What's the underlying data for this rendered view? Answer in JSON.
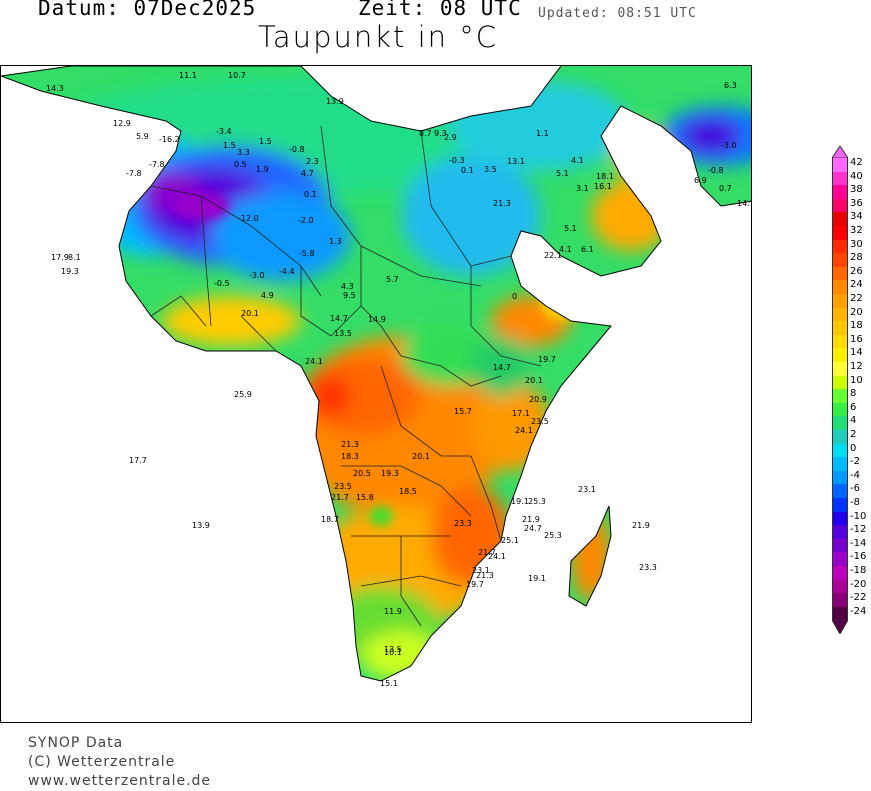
{
  "header": {
    "datum": "Datum: 07Dec2025",
    "zeit": "Zeit: 08  UTC",
    "updated": "Updated: 08:51 UTC",
    "title": "Taupunkt in °C"
  },
  "footer": {
    "line1": "SYNOP Data",
    "line2": "(C) Wetterzentrale",
    "line3": "www.wetterzentrale.de"
  },
  "legend": {
    "levels": [
      {
        "value": "42",
        "color": "#ff66ff"
      },
      {
        "value": "40",
        "color": "#ff33cc"
      },
      {
        "value": "38",
        "color": "#ff0099"
      },
      {
        "value": "36",
        "color": "#ff0066"
      },
      {
        "value": "34",
        "color": "#e60000"
      },
      {
        "value": "32",
        "color": "#ff0000"
      },
      {
        "value": "30",
        "color": "#ff2a00"
      },
      {
        "value": "28",
        "color": "#ff4400"
      },
      {
        "value": "26",
        "color": "#ff6a00"
      },
      {
        "value": "24",
        "color": "#ff8800"
      },
      {
        "value": "22",
        "color": "#ffa000"
      },
      {
        "value": "20",
        "color": "#ffb400"
      },
      {
        "value": "18",
        "color": "#ffc800"
      },
      {
        "value": "16",
        "color": "#ffdc00"
      },
      {
        "value": "14",
        "color": "#ffee00"
      },
      {
        "value": "12",
        "color": "#ffff33"
      },
      {
        "value": "10",
        "color": "#ccff00"
      },
      {
        "value": "8",
        "color": "#66ff33"
      },
      {
        "value": "6",
        "color": "#33ee44"
      },
      {
        "value": "4",
        "color": "#22dd77"
      },
      {
        "value": "2",
        "color": "#22ccbb"
      },
      {
        "value": "0",
        "color": "#00ddee"
      },
      {
        "value": "-2",
        "color": "#00bbff"
      },
      {
        "value": "-4",
        "color": "#0099ff"
      },
      {
        "value": "-6",
        "color": "#0066ff"
      },
      {
        "value": "-8",
        "color": "#0033ff"
      },
      {
        "value": "-10",
        "color": "#2200ee"
      },
      {
        "value": "-12",
        "color": "#5500dd"
      },
      {
        "value": "-14",
        "color": "#7700cc"
      },
      {
        "value": "-16",
        "color": "#9900cc"
      },
      {
        "value": "-18",
        "color": "#bb00bb"
      },
      {
        "value": "-20",
        "color": "#aa0099"
      },
      {
        "value": "-22",
        "color": "#880077"
      },
      {
        "value": "-24",
        "color": "#550044"
      }
    ]
  },
  "stations": [
    {
      "v": "12.9"
    },
    {
      "v": "14.3"
    },
    {
      "v": "13.9"
    },
    {
      "v": "5.9"
    },
    {
      "v": "-16.2"
    },
    {
      "v": "-3.4"
    },
    {
      "v": "1.5"
    },
    {
      "v": "1.5"
    },
    {
      "v": "3.3"
    },
    {
      "v": "0.5"
    },
    {
      "v": "1.9"
    },
    {
      "v": "-0.8"
    },
    {
      "v": "2.3"
    },
    {
      "v": "4.7"
    },
    {
      "v": "0.1"
    },
    {
      "v": "-7.8"
    },
    {
      "v": "-7.8"
    },
    {
      "v": "-12.0"
    },
    {
      "v": "-2.0"
    },
    {
      "v": "-5.8"
    },
    {
      "v": "1.3"
    },
    {
      "v": "-4.4"
    },
    {
      "v": "-3.0"
    },
    {
      "v": "-0.5"
    },
    {
      "v": "4.9"
    },
    {
      "v": "4.3"
    },
    {
      "v": "9.5"
    },
    {
      "v": "5.7"
    },
    {
      "v": "20.1"
    },
    {
      "v": "14.7"
    },
    {
      "v": "13.5"
    },
    {
      "v": "14.9"
    },
    {
      "v": "24.1"
    },
    {
      "v": "17.9"
    },
    {
      "v": "8.1"
    },
    {
      "v": "19.3"
    },
    {
      "v": "25.9"
    },
    {
      "v": "17.7"
    },
    {
      "v": "13.9"
    },
    {
      "v": "8.7"
    },
    {
      "v": "9.3"
    },
    {
      "v": "2.9"
    },
    {
      "v": "-0.3"
    },
    {
      "v": "0.1"
    },
    {
      "v": "3.5"
    },
    {
      "v": "21.3"
    },
    {
      "v": "13.1"
    },
    {
      "v": "18.1"
    },
    {
      "v": "16.1"
    },
    {
      "v": "3.1"
    },
    {
      "v": "5.1"
    },
    {
      "v": "22.1"
    },
    {
      "v": "6.1"
    },
    {
      "v": "4.1"
    },
    {
      "v": "14.7"
    },
    {
      "v": "19.7"
    },
    {
      "v": "20.1"
    },
    {
      "v": "20.9"
    },
    {
      "v": "15.7"
    },
    {
      "v": "17.1"
    },
    {
      "v": "23.5"
    },
    {
      "v": "24.1"
    },
    {
      "v": "21.3"
    },
    {
      "v": "18.3"
    },
    {
      "v": "20.5"
    },
    {
      "v": "19.3"
    },
    {
      "v": "20.1"
    },
    {
      "v": "23.5"
    },
    {
      "v": "21.7"
    },
    {
      "v": "15.8"
    },
    {
      "v": "18.5"
    },
    {
      "v": "18.7"
    },
    {
      "v": "19.1"
    },
    {
      "v": "23.3"
    },
    {
      "v": "24.7"
    },
    {
      "v": "25.1"
    },
    {
      "v": "21.7"
    },
    {
      "v": "24.1"
    },
    {
      "v": "25.3"
    },
    {
      "v": "21.9"
    },
    {
      "v": "25.3"
    },
    {
      "v": "23.1"
    },
    {
      "v": "21.9"
    },
    {
      "v": "23.3"
    },
    {
      "v": "19.1"
    },
    {
      "v": "23.1"
    },
    {
      "v": "21.3"
    },
    {
      "v": "19.7"
    },
    {
      "v": "11.9"
    },
    {
      "v": "13.5"
    },
    {
      "v": "10.1"
    },
    {
      "v": "15.1"
    },
    {
      "v": "1.1"
    },
    {
      "v": "4.1"
    },
    {
      "v": "5.1"
    },
    {
      "v": "-3.0"
    },
    {
      "v": "-0.8"
    },
    {
      "v": "6.9"
    },
    {
      "v": "14.1"
    },
    {
      "v": "0.7"
    },
    {
      "v": "0"
    },
    {
      "v": "11.1"
    },
    {
      "v": "10.7"
    },
    {
      "v": "6.3"
    }
  ]
}
